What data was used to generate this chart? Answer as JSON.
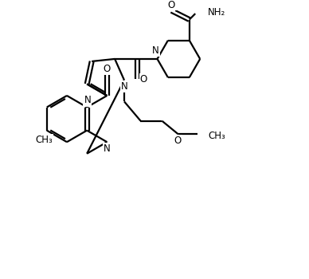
{
  "bg_color": "#ffffff",
  "line_color": "#000000",
  "line_width": 1.6,
  "font_size": 8.5,
  "fig_width": 3.88,
  "fig_height": 3.5,
  "dpi": 100,
  "xlim": [
    0,
    10
  ],
  "ylim": [
    0,
    9
  ]
}
